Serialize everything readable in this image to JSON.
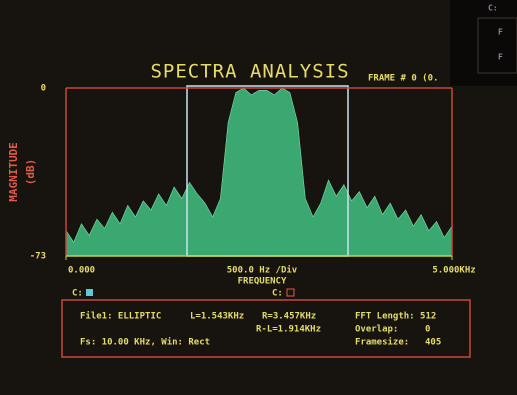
{
  "chart_data": {
    "type": "area",
    "title": "SPECTRA ANALYSIS",
    "frame_label": "FRAME # 0 (0.",
    "ylabel": "MAGNITUDE",
    "ylabel_unit": "(dB)",
    "xlabel": "FREQUENCY",
    "x_scale_label": "500.0 Hz /Div",
    "color": "#3aa870",
    "x": [
      0,
      0.1,
      0.2,
      0.3,
      0.4,
      0.5,
      0.6,
      0.7,
      0.8,
      0.9,
      1.0,
      1.1,
      1.2,
      1.3,
      1.4,
      1.5,
      1.6,
      1.7,
      1.8,
      1.9,
      2.0,
      2.1,
      2.2,
      2.3,
      2.4,
      2.5,
      2.6,
      2.7,
      2.8,
      2.9,
      3.0,
      3.1,
      3.2,
      3.3,
      3.4,
      3.5,
      3.6,
      3.7,
      3.8,
      3.9,
      4.0,
      4.1,
      4.2,
      4.3,
      4.4,
      4.5,
      4.6,
      4.7,
      4.8,
      4.9,
      5.0
    ],
    "values": [
      -62,
      -67,
      -59,
      -64,
      -57,
      -61,
      -54,
      -59,
      -51,
      -56,
      -49,
      -53,
      -46,
      -51,
      -43,
      -48,
      -41,
      -46,
      -50,
      -56,
      -48,
      -15,
      -2,
      0,
      -3,
      -1,
      -1,
      -3,
      0,
      -2,
      -15,
      -48,
      -56,
      -50,
      -40,
      -47,
      -42,
      -49,
      -45,
      -52,
      -47,
      -55,
      -50,
      -57,
      -53,
      -60,
      -55,
      -62,
      -58,
      -65,
      -60
    ],
    "xlim": [
      0,
      5
    ],
    "xticks": [
      {
        "value": 0,
        "label": "0.000"
      },
      {
        "value": 5,
        "label": "5.000KHz"
      }
    ],
    "ylim": [
      -73,
      0
    ],
    "yticks": [
      -73,
      0
    ],
    "cursors": [
      "C:",
      "C:"
    ],
    "info": {
      "file": "File1: ELLIPTIC",
      "left": "L=1.543KHz",
      "right": "R=3.457KHz",
      "span": "R-L=1.914KHz",
      "fft": "FFT Length: 512",
      "overlap_label": "Overlap:",
      "overlap_value": "0",
      "fs": "Fs: 10.00 KHz, Win: Rect",
      "framesize_label": "Framesize:",
      "framesize_value": "405"
    },
    "overlay": [
      "C:",
      "F",
      "F"
    ]
  }
}
